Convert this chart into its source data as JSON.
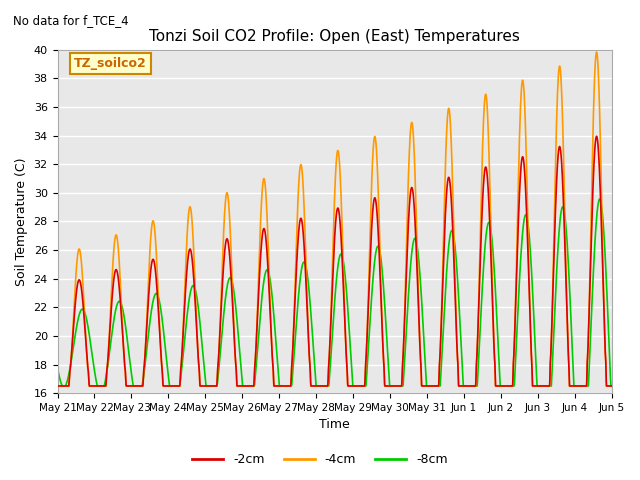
{
  "title": "Tonzi Soil CO2 Profile: Open (East) Temperatures",
  "subtitle": "No data for f_TCE_4",
  "ylabel": "Soil Temperature (C)",
  "xlabel": "Time",
  "legend_label": "TZ_soilco2",
  "ylim": [
    16,
    40
  ],
  "yticks": [
    16,
    18,
    20,
    22,
    24,
    26,
    28,
    30,
    32,
    34,
    36,
    38,
    40
  ],
  "xtick_labels": [
    "May 21",
    "May 22",
    "May 23",
    "May 24",
    "May 25",
    "May 26",
    "May 27",
    "May 28",
    "May 29",
    "May 30",
    "May 31",
    "Jun 1",
    "Jun 2",
    "Jun 3",
    "Jun 4",
    "Jun 5"
  ],
  "bg_color": "#e8e8e8",
  "grid_color": "#ffffff",
  "series": [
    {
      "label": "-2cm",
      "color": "#dd0000",
      "lw": 1.2
    },
    {
      "label": "-4cm",
      "color": "#ff9900",
      "lw": 1.2
    },
    {
      "label": "-8cm",
      "color": "#00cc00",
      "lw": 1.2
    }
  ],
  "n_days": 15,
  "pts_per_day": 144
}
